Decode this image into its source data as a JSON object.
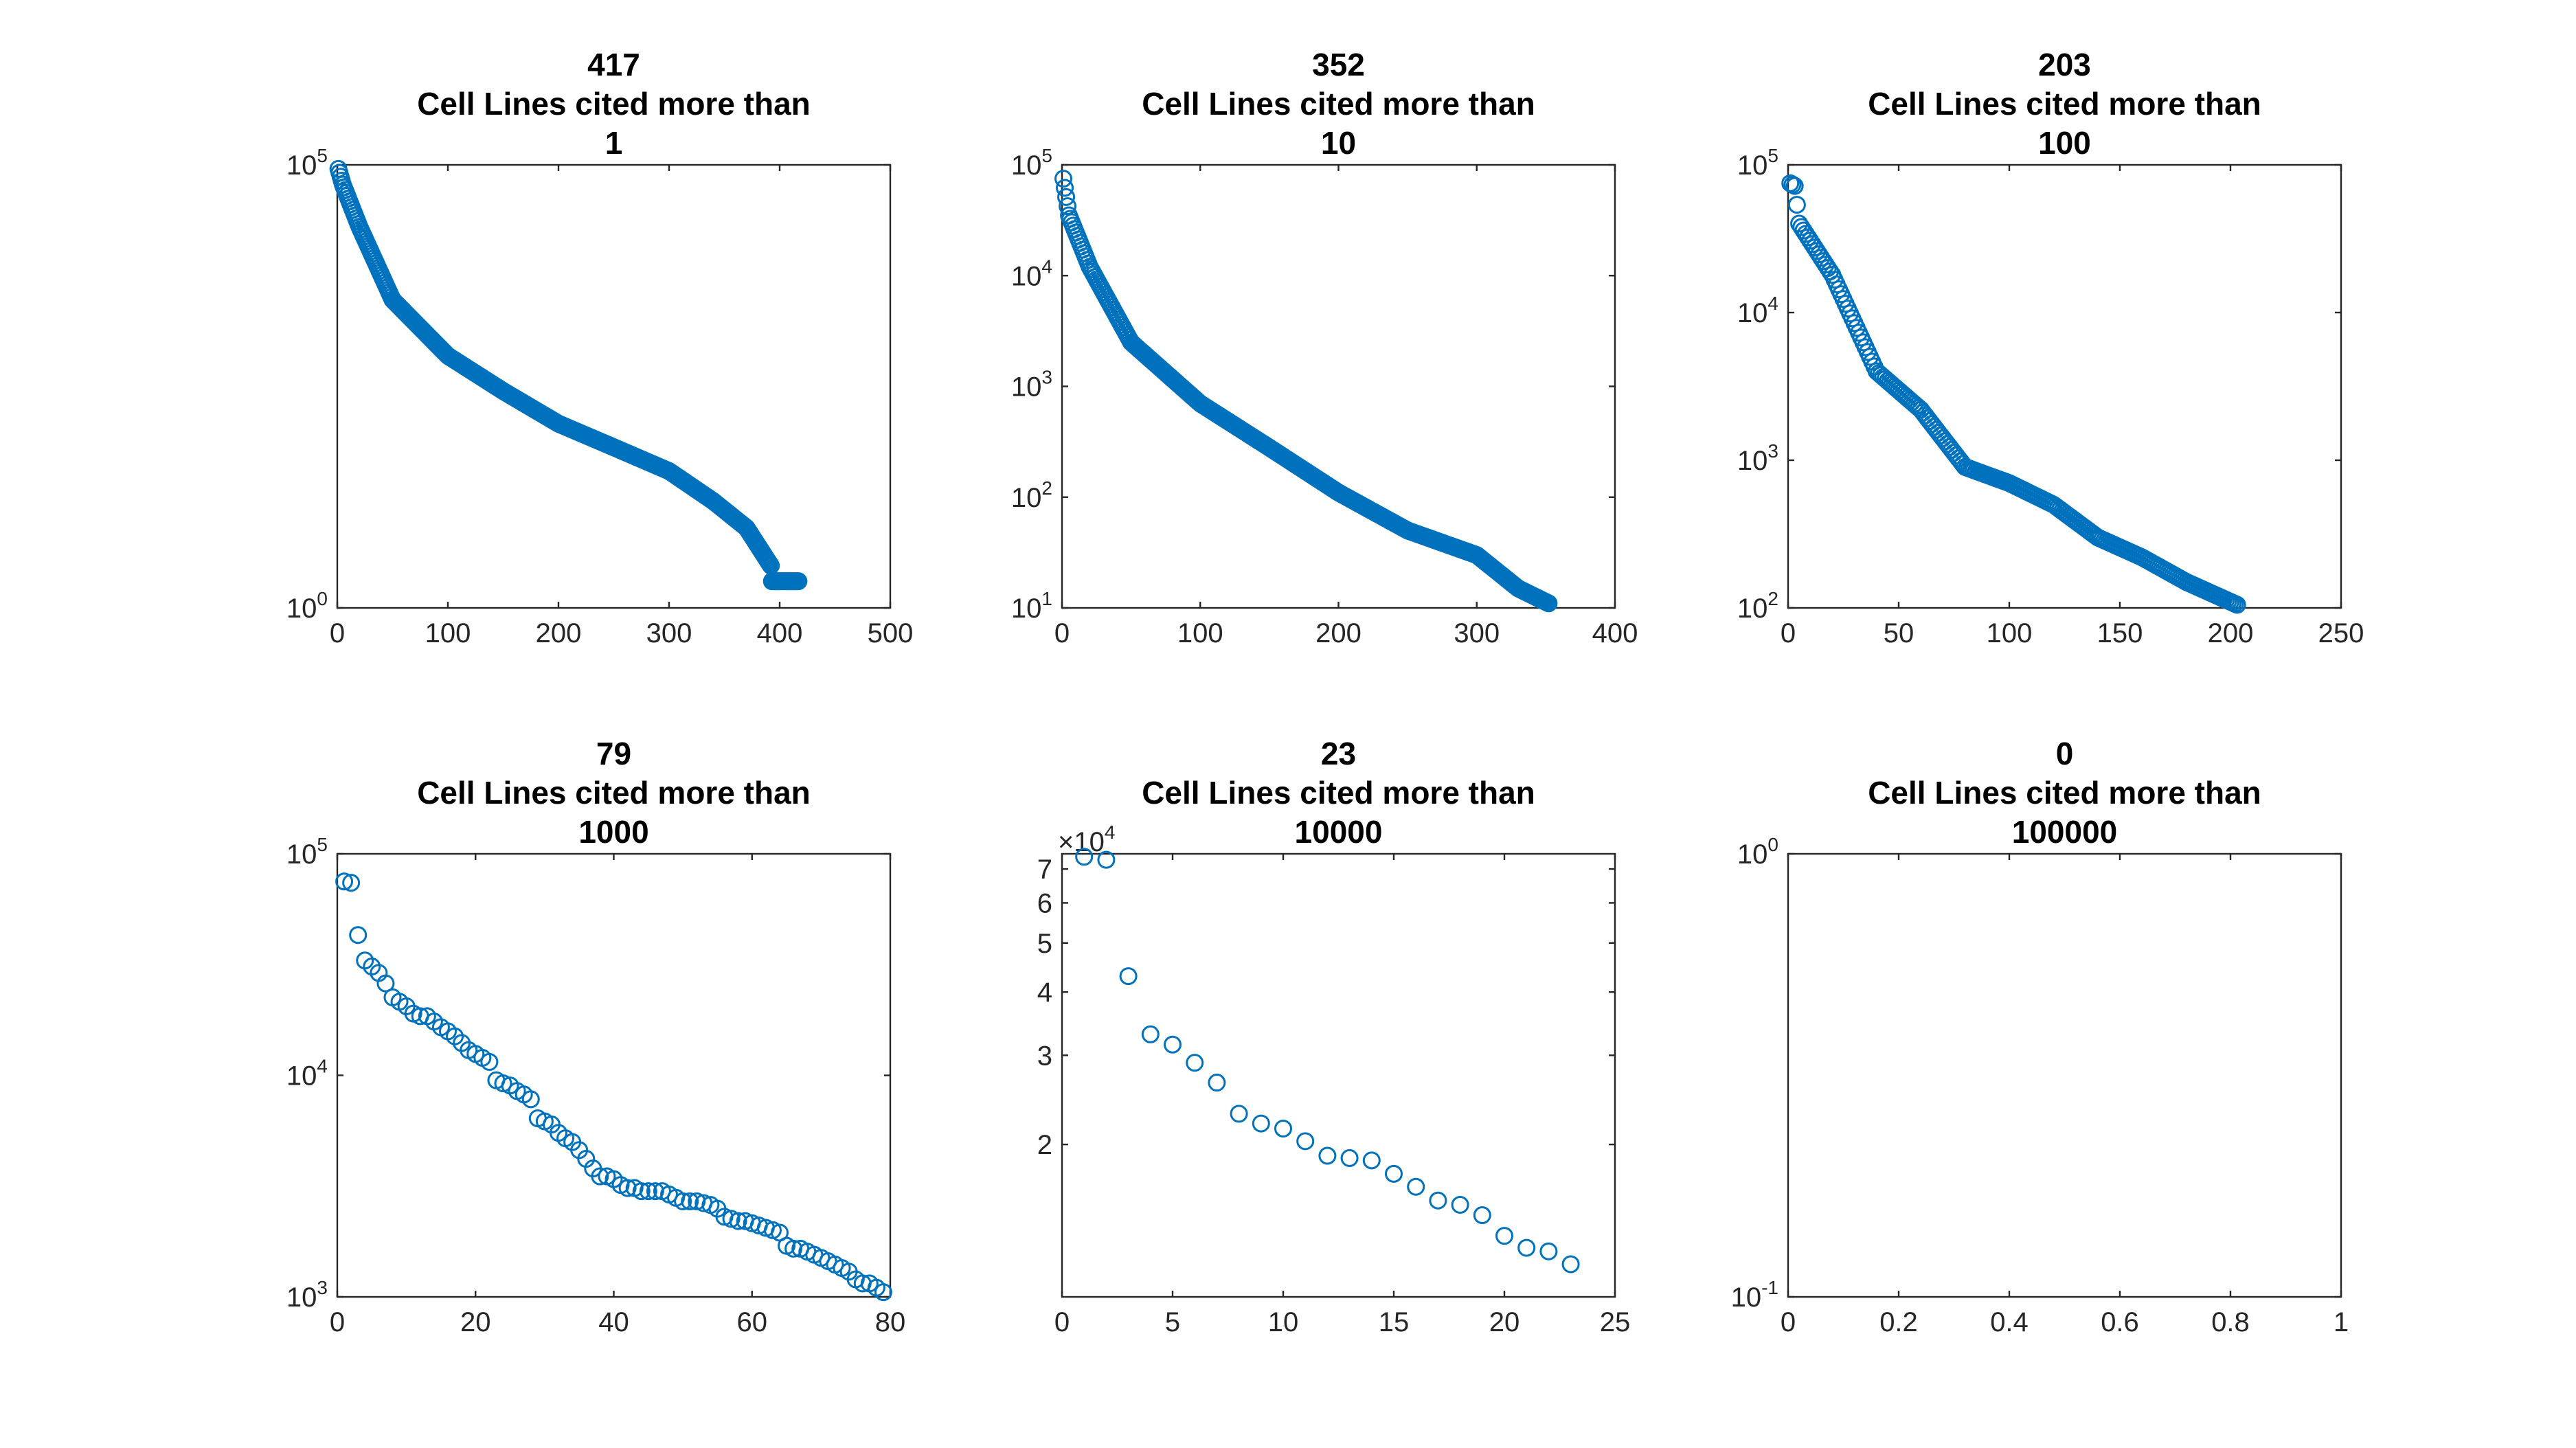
{
  "figure": {
    "marker_color": "#0072BD",
    "marker": "circle"
  },
  "chart_data": [
    {
      "type": "scatter",
      "title": [
        "417",
        "Cell Lines cited more than",
        "1"
      ],
      "xlim": [
        0,
        500
      ],
      "xticks": [
        0,
        100,
        200,
        300,
        400,
        500
      ],
      "xtick_labels": [
        "0",
        "100",
        "200",
        "300",
        "400",
        "500"
      ],
      "yscale": "log",
      "ylim": [
        1,
        100000
      ],
      "yticks": [
        {
          "base": "10",
          "exp": "0",
          "value": 1
        },
        {
          "base": "10",
          "exp": "5",
          "value": 100000
        }
      ],
      "n_points": 417,
      "y_profile": [
        [
          1,
          90000
        ],
        [
          5,
          60000
        ],
        [
          20,
          20000
        ],
        [
          50,
          3000
        ],
        [
          100,
          700
        ],
        [
          150,
          280
        ],
        [
          200,
          120
        ],
        [
          250,
          65
        ],
        [
          300,
          35
        ],
        [
          340,
          16
        ],
        [
          370,
          8
        ],
        [
          392,
          3
        ],
        [
          393,
          2
        ],
        [
          417,
          2
        ]
      ]
    },
    {
      "type": "scatter",
      "title": [
        "352",
        "Cell Lines cited more than",
        "10"
      ],
      "xlim": [
        0,
        400
      ],
      "xticks": [
        0,
        100,
        200,
        300,
        400
      ],
      "xtick_labels": [
        "0",
        "100",
        "200",
        "300",
        "400"
      ],
      "yscale": "log",
      "ylim": [
        10,
        100000
      ],
      "yticks": [
        {
          "base": "10",
          "exp": "1",
          "value": 10
        },
        {
          "base": "10",
          "exp": "2",
          "value": 100
        },
        {
          "base": "10",
          "exp": "3",
          "value": 1000
        },
        {
          "base": "10",
          "exp": "4",
          "value": 10000
        },
        {
          "base": "10",
          "exp": "5",
          "value": 100000
        }
      ],
      "n_points": 352,
      "y_profile": [
        [
          1,
          75000
        ],
        [
          5,
          35000
        ],
        [
          20,
          12000
        ],
        [
          50,
          2500
        ],
        [
          100,
          700
        ],
        [
          150,
          280
        ],
        [
          200,
          110
        ],
        [
          250,
          50
        ],
        [
          300,
          30
        ],
        [
          330,
          15
        ],
        [
          352,
          11
        ]
      ]
    },
    {
      "type": "scatter",
      "title": [
        "203",
        "Cell Lines cited more than",
        "100"
      ],
      "xlim": [
        0,
        250
      ],
      "xticks": [
        0,
        50,
        100,
        150,
        200,
        250
      ],
      "xtick_labels": [
        "0",
        "50",
        "100",
        "150",
        "200",
        "250"
      ],
      "yscale": "log",
      "ylim": [
        100,
        100000
      ],
      "yticks": [
        {
          "base": "10",
          "exp": "2",
          "value": 100
        },
        {
          "base": "10",
          "exp": "3",
          "value": 1000
        },
        {
          "base": "10",
          "exp": "4",
          "value": 10000
        },
        {
          "base": "10",
          "exp": "5",
          "value": 100000
        }
      ],
      "n_points": 203,
      "y_profile": [
        [
          1,
          75000
        ],
        [
          3,
          72000
        ],
        [
          5,
          40000
        ],
        [
          20,
          18000
        ],
        [
          40,
          4000
        ],
        [
          60,
          2200
        ],
        [
          80,
          900
        ],
        [
          100,
          700
        ],
        [
          120,
          500
        ],
        [
          140,
          300
        ],
        [
          160,
          220
        ],
        [
          180,
          150
        ],
        [
          203,
          105
        ]
      ]
    },
    {
      "type": "scatter",
      "title": [
        "79",
        "Cell Lines cited more than",
        "1000"
      ],
      "xlim": [
        0,
        80
      ],
      "xticks": [
        0,
        20,
        40,
        60,
        80
      ],
      "xtick_labels": [
        "0",
        "20",
        "40",
        "60",
        "80"
      ],
      "yscale": "log",
      "ylim": [
        1000,
        100000
      ],
      "yticks": [
        {
          "base": "10",
          "exp": "3",
          "value": 1000
        },
        {
          "base": "10",
          "exp": "4",
          "value": 10000
        },
        {
          "base": "10",
          "exp": "5",
          "value": 100000
        }
      ],
      "x": [
        1,
        2,
        3,
        4,
        5,
        6,
        7,
        8,
        9,
        10,
        11,
        12,
        13,
        14,
        15,
        16,
        17,
        18,
        19,
        20,
        21,
        22,
        23,
        24,
        25,
        26,
        27,
        28,
        29,
        30,
        31,
        32,
        33,
        34,
        35,
        36,
        37,
        38,
        39,
        40,
        41,
        42,
        43,
        44,
        45,
        46,
        47,
        48,
        49,
        50,
        51,
        52,
        53,
        54,
        55,
        56,
        57,
        58,
        59,
        60,
        61,
        62,
        63,
        64,
        65,
        66,
        67,
        68,
        69,
        70,
        71,
        72,
        73,
        74,
        75,
        76,
        77,
        78,
        79
      ],
      "y": [
        75000,
        74000,
        43000,
        33000,
        31000,
        29000,
        26000,
        22500,
        21500,
        20500,
        19000,
        18500,
        18500,
        17500,
        16500,
        15800,
        15000,
        14000,
        13000,
        12500,
        12000,
        11500,
        9500,
        9200,
        9000,
        8500,
        8200,
        7800,
        6400,
        6200,
        6000,
        5500,
        5200,
        5000,
        4600,
        4200,
        3800,
        3500,
        3500,
        3400,
        3200,
        3100,
        3100,
        3000,
        3000,
        3000,
        3000,
        2900,
        2800,
        2700,
        2700,
        2700,
        2650,
        2600,
        2500,
        2300,
        2250,
        2200,
        2200,
        2150,
        2100,
        2050,
        2000,
        1950,
        1700,
        1650,
        1650,
        1600,
        1550,
        1500,
        1450,
        1400,
        1350,
        1300,
        1200,
        1150,
        1150,
        1100,
        1050
      ]
    },
    {
      "type": "scatter",
      "title": [
        "23",
        "Cell Lines cited more than",
        "10000"
      ],
      "xlim": [
        0,
        25
      ],
      "xticks": [
        0,
        5,
        10,
        15,
        20,
        25
      ],
      "xtick_labels": [
        "0",
        "5",
        "10",
        "15",
        "20",
        "25"
      ],
      "yscale": "log",
      "ylim": [
        10000,
        75000
      ],
      "ytick_labels": [
        "2",
        "3",
        "4",
        "5",
        "6",
        "7"
      ],
      "yticks_values": [
        20000,
        30000,
        40000,
        50000,
        60000,
        70000
      ],
      "y_multiplier": {
        "sign": "×",
        "base": "10",
        "exp": "4"
      },
      "x": [
        1,
        2,
        3,
        4,
        5,
        6,
        7,
        8,
        9,
        10,
        11,
        12,
        13,
        14,
        15,
        16,
        17,
        18,
        19,
        20,
        21,
        22,
        23
      ],
      "y": [
        74000,
        73000,
        43000,
        33000,
        31500,
        29000,
        26500,
        23000,
        22000,
        21500,
        20300,
        19000,
        18800,
        18600,
        17500,
        16500,
        15500,
        15200,
        14500,
        13200,
        12500,
        12300,
        11600
      ]
    },
    {
      "type": "scatter",
      "title": [
        "0",
        "Cell Lines cited more than",
        "100000"
      ],
      "xlim": [
        0,
        1
      ],
      "xticks": [
        0,
        0.2,
        0.4,
        0.6,
        0.8,
        1
      ],
      "xtick_labels": [
        "0",
        "0.2",
        "0.4",
        "0.6",
        "0.8",
        "1"
      ],
      "yscale": "log",
      "ylim": [
        0.1,
        1
      ],
      "yticks": [
        {
          "base": "10",
          "exp": "-1",
          "value": 0.1
        },
        {
          "base": "10",
          "exp": "0",
          "value": 1
        }
      ],
      "x": [],
      "y": []
    }
  ]
}
